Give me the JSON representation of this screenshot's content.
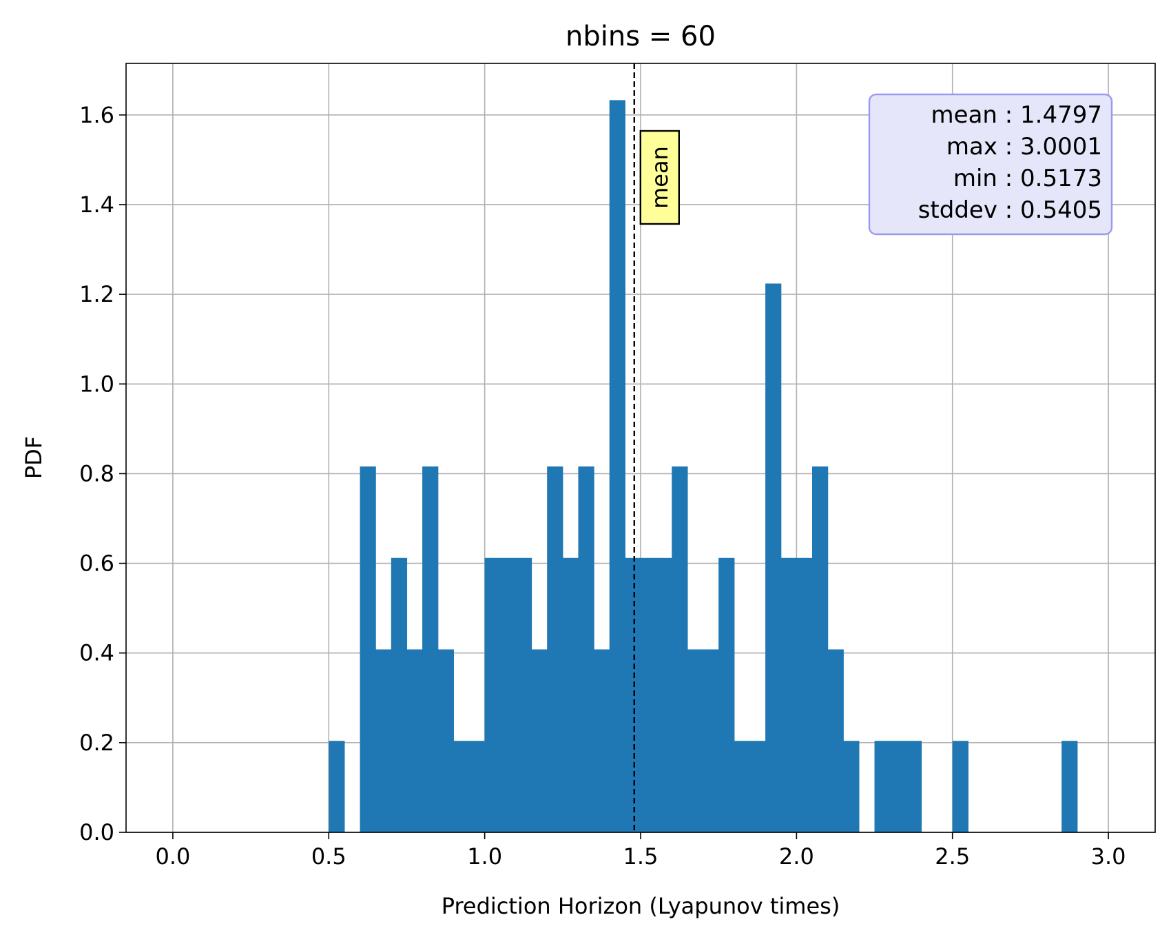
{
  "chart_data": {
    "type": "bar",
    "title": "nbins = 60",
    "xlabel": "Prediction Horizon (Lyapunov times)",
    "ylabel": "PDF",
    "xlim": [
      -0.15,
      3.15
    ],
    "ylim": [
      0,
      1.715
    ],
    "xticks": [
      "0.0",
      "0.5",
      "1.0",
      "1.5",
      "2.0",
      "2.5",
      "3.0"
    ],
    "xtick_values": [
      0,
      0.5,
      1.0,
      1.5,
      2.0,
      2.5,
      3.0
    ],
    "yticks": [
      "0.0",
      "0.2",
      "0.4",
      "0.6",
      "0.8",
      "1.0",
      "1.2",
      "1.4",
      "1.6"
    ],
    "ytick_values": [
      0,
      0.2,
      0.4,
      0.6,
      0.8,
      1.0,
      1.2,
      1.4,
      1.6
    ],
    "grid": true,
    "bar_color": "#1f77b4",
    "bin_start": 0.0,
    "bin_width": 0.05,
    "values": [
      0,
      0,
      0,
      0,
      0,
      0,
      0,
      0,
      0,
      0,
      0.204,
      0,
      0.816,
      0.408,
      0.612,
      0.408,
      0.816,
      0.408,
      0.204,
      0.204,
      0.612,
      0.612,
      0.612,
      0.408,
      0.816,
      0.612,
      0.816,
      0.408,
      1.633,
      0.612,
      0.612,
      0.612,
      0.816,
      0.408,
      0.408,
      0.612,
      0.204,
      0.204,
      1.224,
      0.612,
      0.612,
      0.816,
      0.408,
      0.204,
      0,
      0.204,
      0.204,
      0.204,
      0,
      0,
      0.204,
      0,
      0,
      0,
      0,
      0,
      0,
      0.204,
      0,
      0
    ],
    "mean_line": {
      "x": 1.4797,
      "label": "mean",
      "label_bg": "#ffff99"
    },
    "stats_box": {
      "lines": [
        "mean : 1.4797",
        "max : 3.0001",
        "min : 0.5173",
        "stddev : 0.5405"
      ],
      "bg": "#e6e6fa",
      "border": "#9999ee"
    }
  }
}
